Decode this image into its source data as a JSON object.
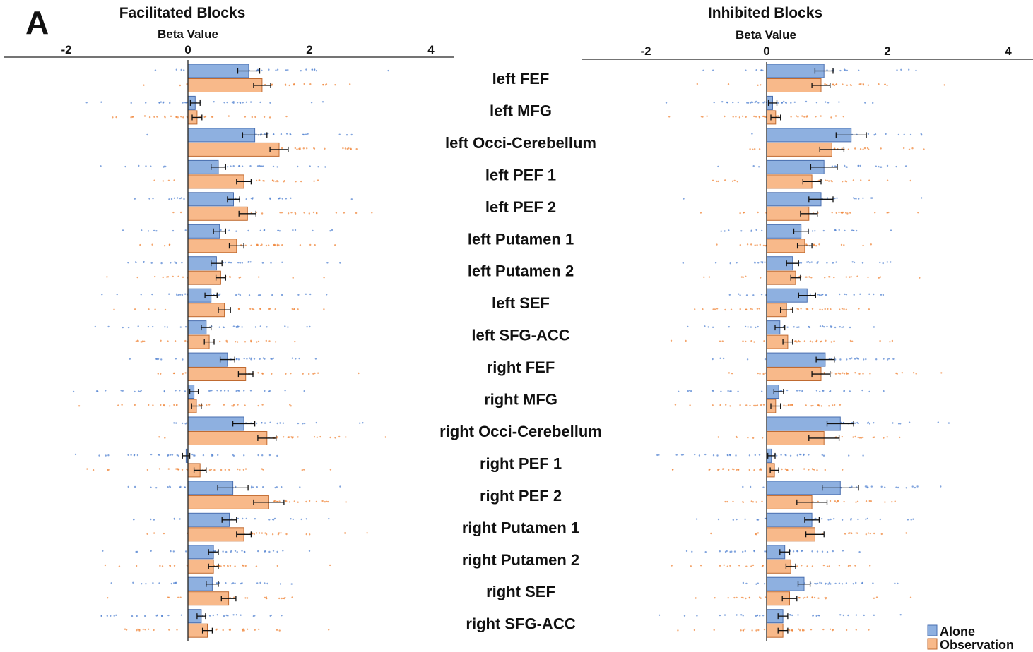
{
  "figure": {
    "panel_letter": "A",
    "legend": {
      "alone_label": "Alone",
      "observation_label": "Observation"
    },
    "colors": {
      "alone_fill": "#8eb0e0",
      "alone_edge": "#4a6fb0",
      "alone_dots": "#4d7fd0",
      "observation_fill": "#f8b98a",
      "observation_edge": "#c06a30",
      "observation_dots": "#f08030"
    }
  },
  "chart_data": [
    {
      "type": "bar",
      "orientation": "horizontal",
      "title": "Facilitated Blocks",
      "xlabel": "Beta Value",
      "xlim": [
        -3.05,
        4.45
      ],
      "xticks": [
        -2,
        0,
        2,
        4
      ],
      "categories": [
        "left FEF",
        "left MFG",
        "left Occi-Cerebellum",
        "left PEF 1",
        "left PEF 2",
        "left Putamen 1",
        "left Putamen 2",
        "left SEF",
        "left SFG-ACC",
        "right FEF",
        "right MFG",
        "right Occi-Cerebellum",
        "right PEF 1",
        "right PEF 2",
        "right Putamen 1",
        "right Putamen 2",
        "right SEF",
        "right SFG-ACC"
      ],
      "series": [
        {
          "name": "Alone",
          "values": [
            1.0,
            0.12,
            1.1,
            0.5,
            0.75,
            0.52,
            0.47,
            0.38,
            0.3,
            0.65,
            0.1,
            0.92,
            -0.03,
            0.74,
            0.68,
            0.42,
            0.4,
            0.22
          ],
          "errors": [
            0.18,
            0.08,
            0.2,
            0.12,
            0.1,
            0.1,
            0.09,
            0.1,
            0.08,
            0.12,
            0.07,
            0.18,
            0.06,
            0.25,
            0.12,
            0.08,
            0.1,
            0.07
          ]
        },
        {
          "name": "Observation",
          "values": [
            1.22,
            0.15,
            1.5,
            0.92,
            0.98,
            0.8,
            0.54,
            0.6,
            0.35,
            0.95,
            0.14,
            1.3,
            0.2,
            1.33,
            0.92,
            0.42,
            0.67,
            0.32
          ],
          "errors": [
            0.14,
            0.08,
            0.15,
            0.12,
            0.14,
            0.12,
            0.08,
            0.1,
            0.08,
            0.12,
            0.08,
            0.15,
            0.1,
            0.25,
            0.12,
            0.08,
            0.12,
            0.08
          ]
        }
      ]
    },
    {
      "type": "bar",
      "orientation": "horizontal",
      "title": "Inhibited Blocks",
      "xlabel": "Beta Value",
      "xlim": [
        -3.0,
        4.45
      ],
      "xticks": [
        -2,
        0,
        2,
        4
      ],
      "categories": [
        "left FEF",
        "left MFG",
        "left Occi-Cerebellum",
        "left PEF 1",
        "left PEF 2",
        "left Putamen 1",
        "left Putamen 2",
        "left SEF",
        "left SFG-ACC",
        "right FEF",
        "right MFG",
        "right Occi-Cerebellum",
        "right PEF 1",
        "right PEF 2",
        "right Putamen 1",
        "right Putamen 2",
        "right SEF",
        "right SFG-ACC"
      ],
      "series": [
        {
          "name": "Alone",
          "values": [
            0.95,
            0.1,
            1.4,
            0.95,
            0.9,
            0.57,
            0.43,
            0.67,
            0.22,
            0.97,
            0.2,
            1.22,
            0.08,
            1.22,
            0.75,
            0.3,
            0.62,
            0.27
          ],
          "errors": [
            0.15,
            0.07,
            0.25,
            0.22,
            0.2,
            0.12,
            0.1,
            0.14,
            0.08,
            0.15,
            0.08,
            0.22,
            0.06,
            0.3,
            0.12,
            0.08,
            0.1,
            0.08
          ]
        },
        {
          "name": "Observation",
          "values": [
            0.9,
            0.15,
            1.08,
            0.75,
            0.7,
            0.63,
            0.48,
            0.33,
            0.35,
            0.9,
            0.15,
            0.95,
            0.13,
            0.75,
            0.8,
            0.4,
            0.38,
            0.27
          ],
          "errors": [
            0.15,
            0.08,
            0.2,
            0.15,
            0.14,
            0.12,
            0.08,
            0.1,
            0.08,
            0.15,
            0.08,
            0.25,
            0.07,
            0.25,
            0.15,
            0.08,
            0.12,
            0.08
          ]
        }
      ]
    }
  ]
}
